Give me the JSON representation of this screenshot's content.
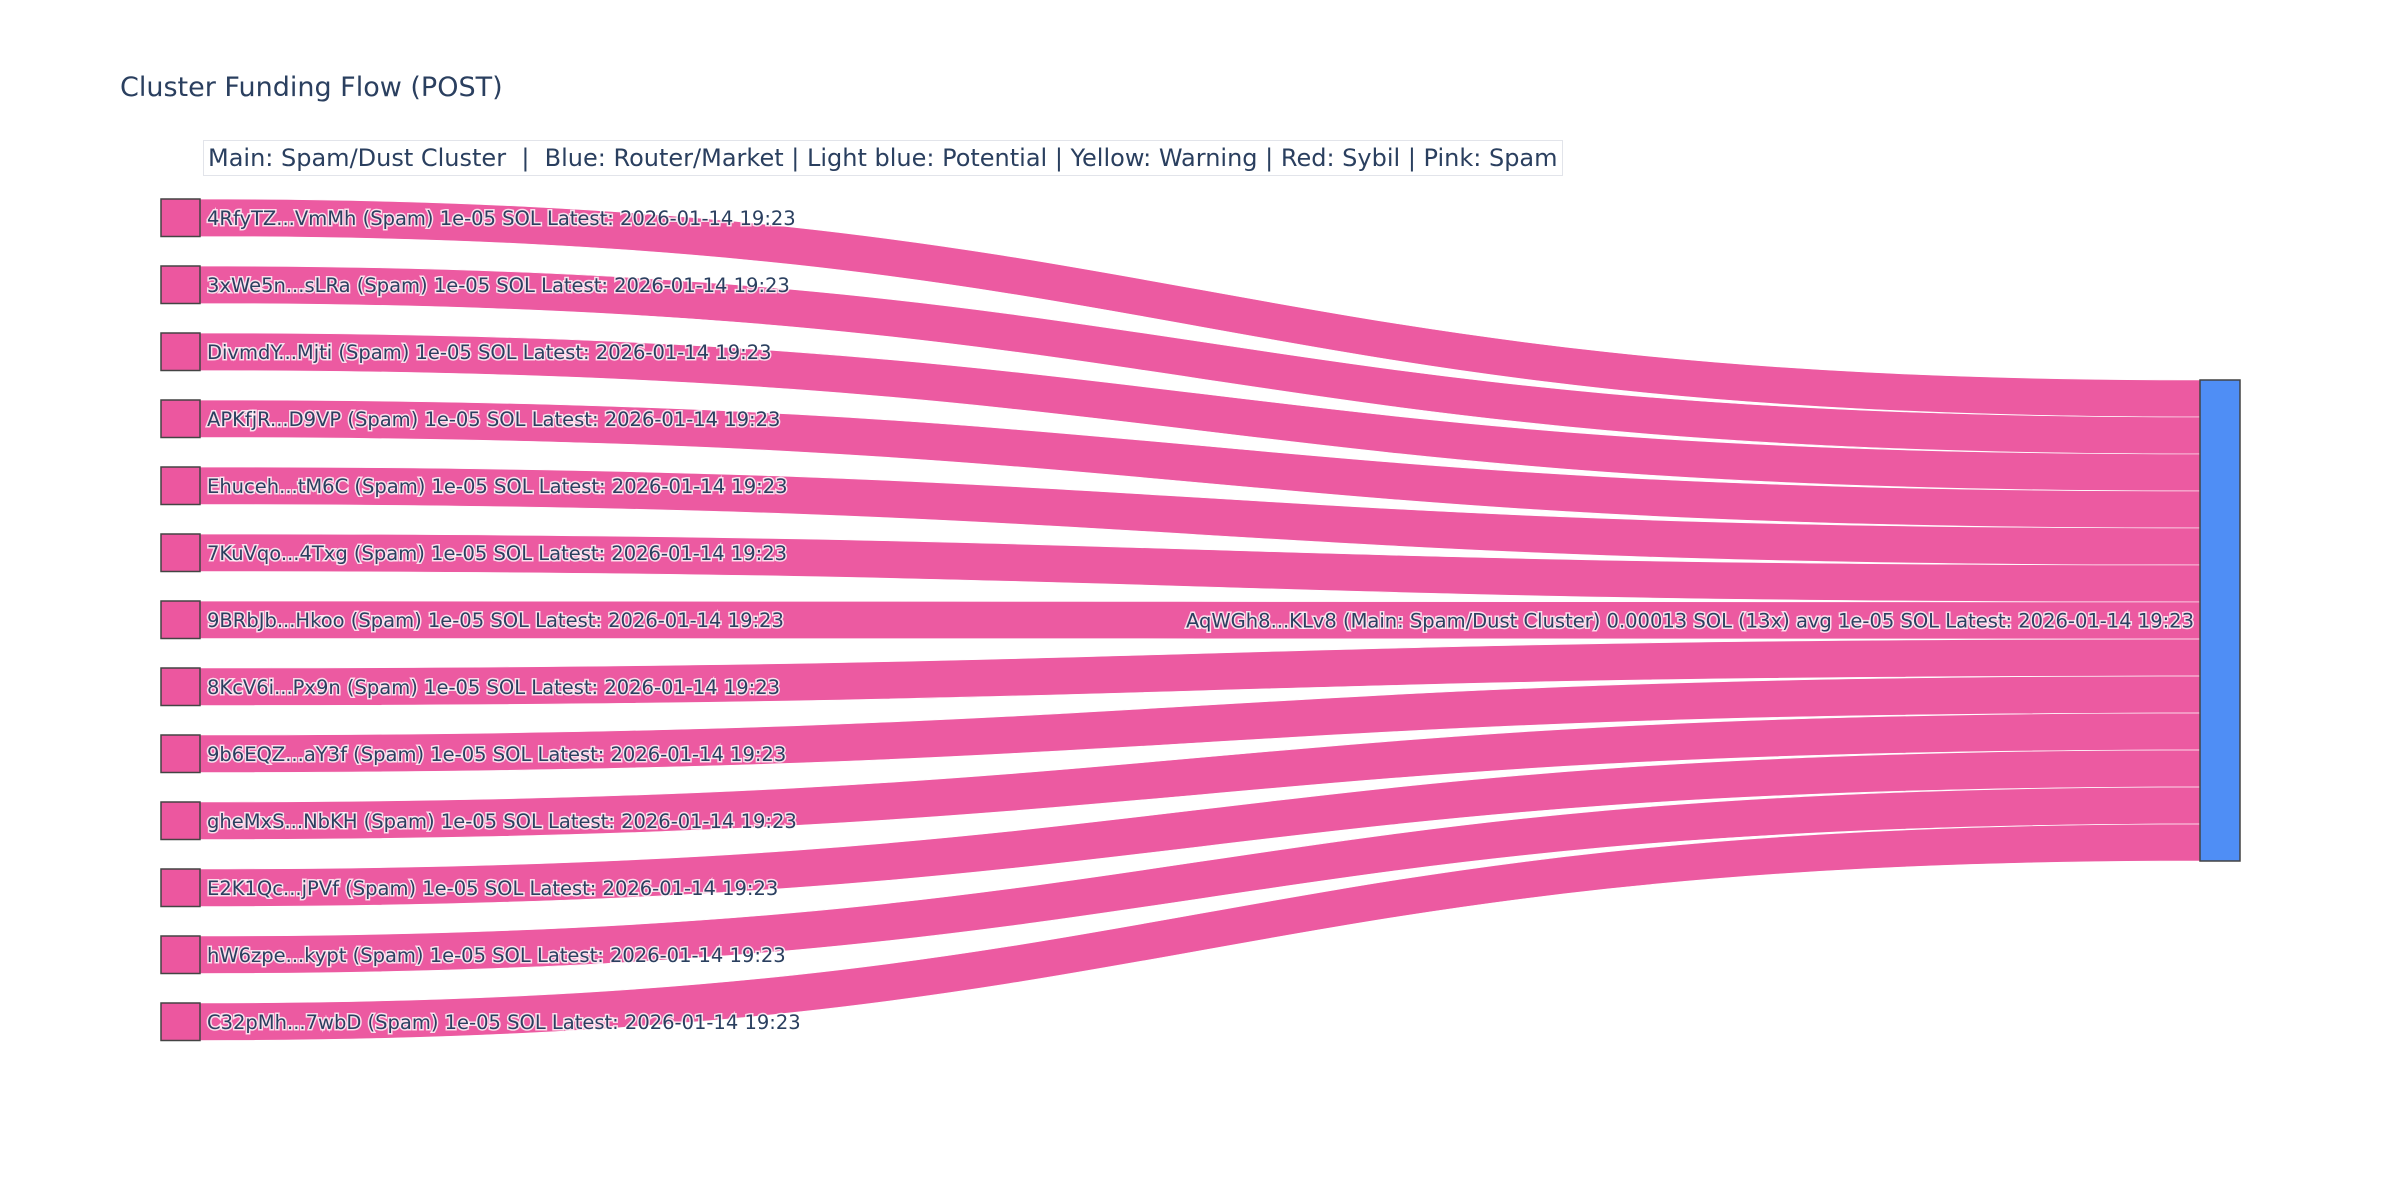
{
  "title": "Cluster Funding Flow (POST)",
  "annotation": "Main: Spam/Dust Cluster  |  Blue: Router/Market | Light blue: Potential | Yellow: Warning | Red: Sybil | Pink: Spam",
  "colors": {
    "spam": "#ec579f",
    "main": "#4f8ef5",
    "link": "#ec579f",
    "text": "#2a3f5f"
  },
  "chart_data": {
    "type": "sankey",
    "title": "Cluster Funding Flow (POST)",
    "sources": [
      {
        "label": "4RfyTZ...VmMh (Spam) 1e-05 SOL Latest: 2026-01-14 19:23",
        "value": 1e-05
      },
      {
        "label": "3xWe5n...sLRa (Spam) 1e-05 SOL Latest: 2026-01-14 19:23",
        "value": 1e-05
      },
      {
        "label": "DivmdY...Mjti (Spam) 1e-05 SOL Latest: 2026-01-14 19:23",
        "value": 1e-05
      },
      {
        "label": "APKfjR...D9VP (Spam) 1e-05 SOL Latest: 2026-01-14 19:23",
        "value": 1e-05
      },
      {
        "label": "Ehuceh...tM6C (Spam) 1e-05 SOL Latest: 2026-01-14 19:23",
        "value": 1e-05
      },
      {
        "label": "7KuVqo...4Txg (Spam) 1e-05 SOL Latest: 2026-01-14 19:23",
        "value": 1e-05
      },
      {
        "label": "9BRbJb...Hkoo (Spam) 1e-05 SOL Latest: 2026-01-14 19:23",
        "value": 1e-05
      },
      {
        "label": "8KcV6i...Px9n (Spam) 1e-05 SOL Latest: 2026-01-14 19:23",
        "value": 1e-05
      },
      {
        "label": "9b6EQZ...aY3f (Spam) 1e-05 SOL Latest: 2026-01-14 19:23",
        "value": 1e-05
      },
      {
        "label": "gheMxS...NbKH (Spam) 1e-05 SOL Latest: 2026-01-14 19:23",
        "value": 1e-05
      },
      {
        "label": "E2K1Qc...jPVf (Spam) 1e-05 SOL Latest: 2026-01-14 19:23",
        "value": 1e-05
      },
      {
        "label": "hW6zpe...kypt (Spam) 1e-05 SOL Latest: 2026-01-14 19:23",
        "value": 1e-05
      },
      {
        "label": "C32pMh...7wbD (Spam) 1e-05 SOL Latest: 2026-01-14 19:23",
        "value": 1e-05
      }
    ],
    "target": {
      "label": "AqWGh8...KLv8 (Main: Spam/Dust Cluster) 0.00013 SOL (13x) avg 1e-05 SOL Latest: 2026-01-14 19:23",
      "value": 0.00013
    }
  }
}
